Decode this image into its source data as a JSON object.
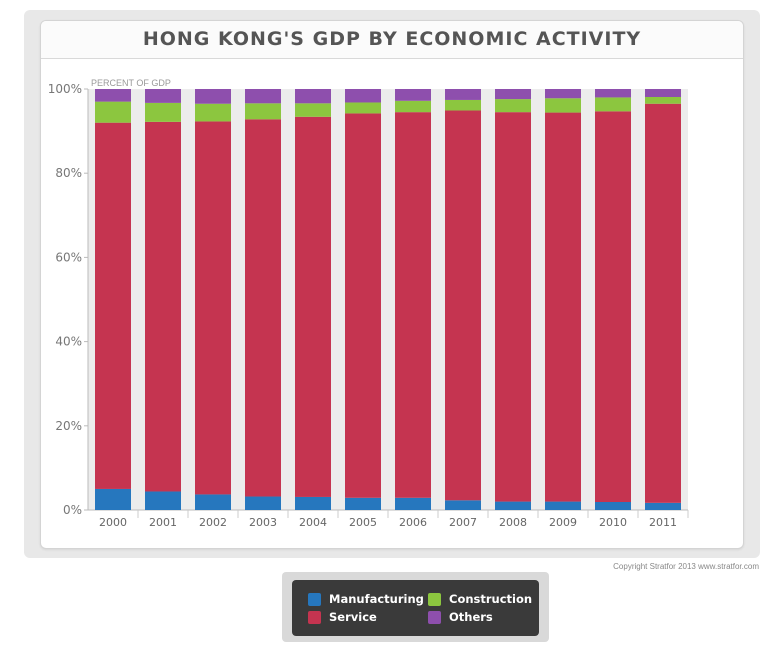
{
  "title": "HONG KONG'S GDP BY ECONOMIC ACTIVITY",
  "copyright": "Copyright Stratfor 2013   www.stratfor.com",
  "legend": {
    "items": [
      {
        "label": "Manufacturing",
        "color": "#2677be"
      },
      {
        "label": "Construction",
        "color": "#8cc63f"
      },
      {
        "label": "Service",
        "color": "#c53450"
      },
      {
        "label": "Others",
        "color": "#8e4fad"
      }
    ]
  },
  "chart_data": {
    "type": "bar",
    "stacked": true,
    "ylabel": "PERCENT OF GDP",
    "ylim": [
      0,
      100
    ],
    "yticks": [
      "0%",
      "20%",
      "40%",
      "60%",
      "80%",
      "100%"
    ],
    "categories": [
      "2000",
      "2001",
      "2002",
      "2003",
      "2004",
      "2005",
      "2006",
      "2007",
      "2008",
      "2009",
      "2010",
      "2011"
    ],
    "series": [
      {
        "name": "Manufacturing",
        "color": "#2677be",
        "values": [
          5.0,
          4.4,
          3.7,
          3.2,
          3.1,
          2.9,
          2.9,
          2.3,
          2.0,
          2.0,
          1.9,
          1.7
        ]
      },
      {
        "name": "Service",
        "color": "#c53450",
        "values": [
          87.0,
          87.8,
          88.6,
          89.6,
          90.3,
          91.3,
          91.6,
          92.6,
          92.5,
          92.4,
          92.8,
          94.8
        ]
      },
      {
        "name": "Construction",
        "color": "#8cc63f",
        "values": [
          5.0,
          4.5,
          4.2,
          3.8,
          3.2,
          2.6,
          2.7,
          2.5,
          3.1,
          3.4,
          3.3,
          1.6
        ]
      },
      {
        "name": "Others",
        "color": "#8e4fad",
        "values": [
          3.0,
          3.3,
          3.5,
          3.4,
          3.4,
          3.2,
          2.8,
          2.6,
          2.4,
          2.2,
          2.0,
          1.9
        ]
      }
    ],
    "grid": false,
    "legend_position": "bottom"
  }
}
